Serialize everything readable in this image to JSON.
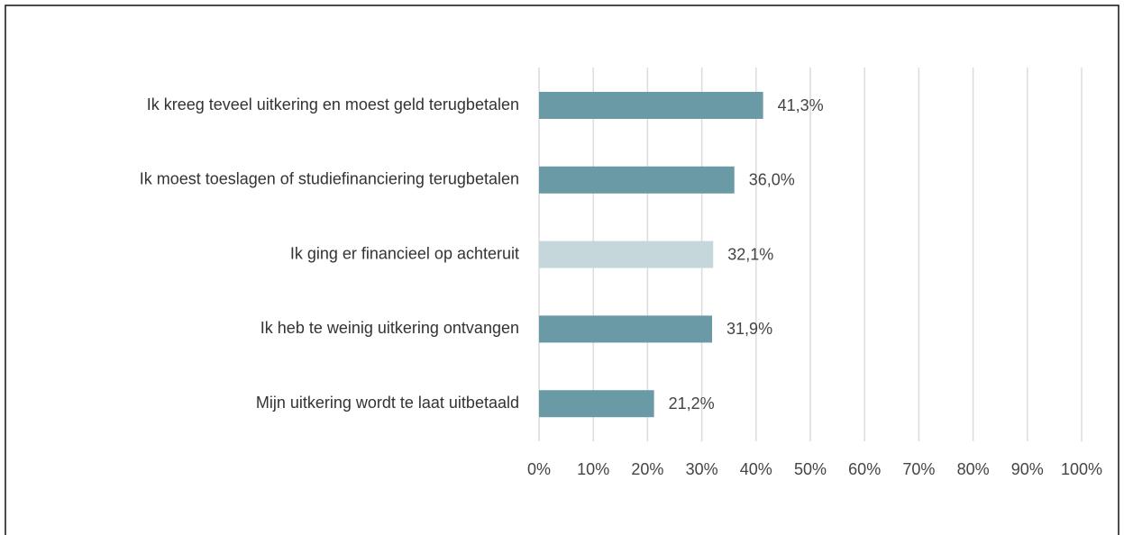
{
  "chart_data": {
    "type": "bar",
    "orientation": "horizontal",
    "categories": [
      "Ik kreeg teveel uitkering en moest geld terugbetalen",
      "Ik moest toeslagen of studiefinanciering terugbetalen",
      "Ik ging er financieel op achteruit",
      "Ik heb te weinig uitkering ontvangen",
      "Mijn uitkering wordt te laat uitbetaald"
    ],
    "values": [
      41.3,
      36.0,
      32.1,
      31.9,
      21.2
    ],
    "value_labels": [
      "41,3%",
      "36,0%",
      "32,1%",
      "31,9%",
      "21,2%"
    ],
    "colors": [
      "#6a9aa5",
      "#6a9aa5",
      "#c5d7db",
      "#6a9aa5",
      "#6a9aa5"
    ],
    "xlim": [
      0,
      100
    ],
    "xticks": [
      {
        "value": 0,
        "label": "0%"
      },
      {
        "value": 10,
        "label": "10%"
      },
      {
        "value": 20,
        "label": "20%"
      },
      {
        "value": 30,
        "label": "30%"
      },
      {
        "value": 40,
        "label": "40%"
      },
      {
        "value": 50,
        "label": "50%"
      },
      {
        "value": 60,
        "label": "60%"
      },
      {
        "value": 70,
        "label": "70%"
      },
      {
        "value": 80,
        "label": "80%"
      },
      {
        "value": 90,
        "label": "90%"
      },
      {
        "value": 100,
        "label": "100%"
      }
    ],
    "grid": true
  }
}
